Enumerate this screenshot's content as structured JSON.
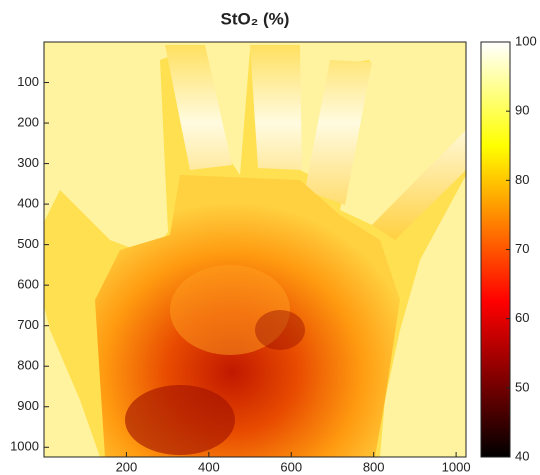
{
  "chart_data": {
    "type": "heatmap",
    "title": "StO₂ (%)",
    "xlim": [
      0,
      1024
    ],
    "xticks": [
      200,
      400,
      600,
      800,
      1000
    ],
    "ylim": [
      0,
      1024
    ],
    "yticks": [
      100,
      200,
      300,
      400,
      500,
      600,
      700,
      800,
      900,
      1000
    ],
    "y_reversed": true,
    "colormap": "hot",
    "clim": [
      40,
      100
    ],
    "cticks": [
      40,
      50,
      60,
      70,
      80,
      90,
      100
    ]
  }
}
